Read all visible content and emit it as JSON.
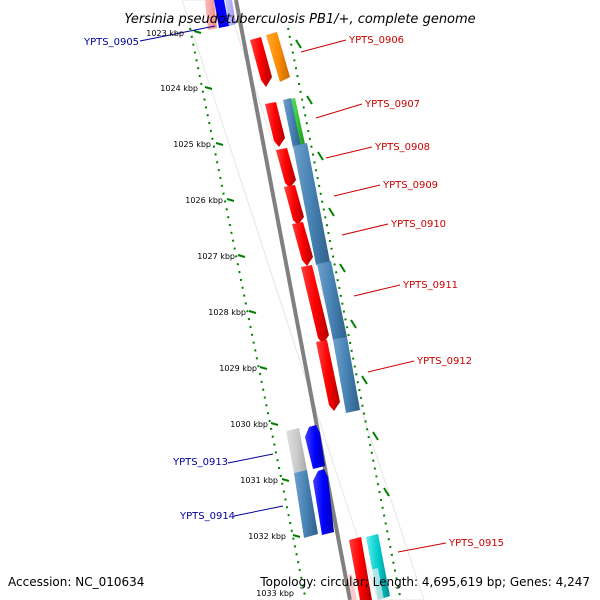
{
  "title": "Yersinia pseudotuberculosis PB1/+, complete genome",
  "footer": {
    "accession": "Accession: NC_010634",
    "topology": "Topology: circular; Length: 4,695,619 bp; Genes: 4,247"
  },
  "ticks": [
    "1023 kbp",
    "1024 kbp",
    "1025 kbp",
    "1026 kbp",
    "1027 kbp",
    "1028 kbp",
    "1029 kbp",
    "1030 kbp",
    "1031 kbp",
    "1032 kbp",
    "1033 kbp"
  ],
  "gene_labels": [
    {
      "text": "YPTS_0905",
      "strand": "minus"
    },
    {
      "text": "YPTS_0906",
      "strand": "plus"
    },
    {
      "text": "YPTS_0907",
      "strand": "plus"
    },
    {
      "text": "YPTS_0908",
      "strand": "plus"
    },
    {
      "text": "YPTS_0909",
      "strand": "plus"
    },
    {
      "text": "YPTS_0910",
      "strand": "plus"
    },
    {
      "text": "YPTS_0911",
      "strand": "plus"
    },
    {
      "text": "YPTS_0912",
      "strand": "plus"
    },
    {
      "text": "YPTS_0913",
      "strand": "minus"
    },
    {
      "text": "YPTS_0914",
      "strand": "minus"
    },
    {
      "text": "YPTS_0915",
      "strand": "plus"
    }
  ],
  "colors": {
    "plus_gene": "#ff0000",
    "minus_gene": "#0000ff",
    "plus_label": "#cc0000",
    "minus_label": "#000099",
    "blast_hit": "#4682b4",
    "pseudo_gene": "#cccccc",
    "orange_feature": "#ff8c00",
    "green_feature": "#33cc33",
    "cyan_feature": "#00cccc",
    "backbone": "#808080",
    "tick": "#008000"
  }
}
